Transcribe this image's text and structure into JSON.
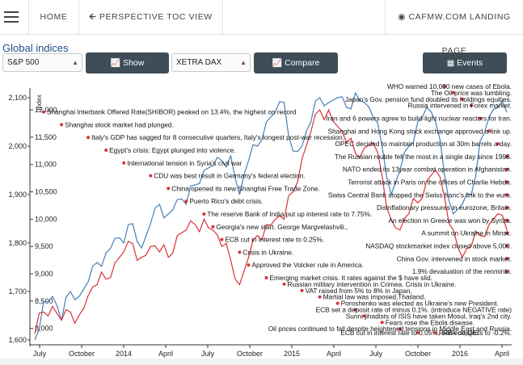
{
  "nav": {
    "home_label": "HOME",
    "toc_label": "PERSPECTIVE TOC VIEW",
    "toc_icon": "arrow-left-icon",
    "landing_label": "CAFMW.COM LANDING PAGE",
    "landing_icon": "globe-icon"
  },
  "page_title": "Global indices",
  "controls": {
    "index1_selected": "S&P 500",
    "show_label": "Show",
    "index2_selected": "XETRA DAX",
    "compare_label": "Compare",
    "events_label": "Events"
  },
  "colors": {
    "series1": "#4a7fb5",
    "series2": "#d9333a",
    "accent": "#1c4d86",
    "button": "#3e4d57"
  },
  "chart_data": {
    "type": "line",
    "title": "",
    "xlabel": "",
    "ylabel": "Index",
    "x_ticks": [
      "July",
      "October",
      "2014",
      "April",
      "July",
      "October",
      "2015",
      "April",
      "July",
      "October",
      "2016",
      "April"
    ],
    "left_axis": {
      "ylim": [
        1590,
        2120
      ],
      "ticks": [
        1600,
        1700,
        1800,
        1900,
        2000,
        2100
      ]
    },
    "right_axis": {
      "ylim": [
        7700,
        12400
      ],
      "ticks": [
        8000,
        8500,
        9000,
        9500,
        10000,
        10500,
        11000,
        11500,
        12000
      ]
    },
    "series": [
      {
        "name": "S&P 500",
        "axis": "left",
        "values": [
          1600,
          1680,
          1690,
          1640,
          1700,
          1690,
          1720,
          1760,
          1780,
          1810,
          1800,
          1840,
          1790,
          1840,
          1880,
          1860,
          1890,
          1880,
          1920,
          1950,
          1960,
          1970,
          1980,
          1900,
          1970,
          2000,
          2050,
          2070,
          2090,
          1990,
          2000,
          2050,
          2100,
          2090,
          2100,
          2080,
          2110,
          2090,
          2060,
          2000,
          1900,
          1950,
          2000,
          2050,
          2080,
          2050,
          1940,
          1860,
          1880,
          1900,
          2010,
          2060,
          2080,
          2070
        ]
      },
      {
        "name": "XETRA DAX",
        "axis": "right",
        "values": [
          7900,
          8300,
          8400,
          8150,
          8300,
          8250,
          8600,
          8800,
          8900,
          9200,
          9400,
          9550,
          9300,
          9500,
          9400,
          9300,
          9700,
          9800,
          9900,
          10000,
          9800,
          9500,
          9250,
          8800,
          9300,
          9700,
          9900,
          10000,
          10000,
          10500,
          11100,
          11600,
          12000,
          12000,
          11700,
          11400,
          11200,
          11300,
          11400,
          10800,
          10000,
          9800,
          10100,
          10300,
          10700,
          10900,
          10400,
          9800,
          9300,
          9500,
          9700,
          9900,
          10100,
          9800
        ]
      }
    ],
    "events": [
      {
        "text": "WHO warned 10,000 new cases of Ebola.",
        "dot_x": 46
      },
      {
        "text": "The Oil price was tumbling.",
        "dot_x": 47
      },
      {
        "text": "Japan's Gov. pension fund doubled its holdings equities.",
        "dot_x": 48
      },
      {
        "text": "Russia intervened in Forex market.",
        "dot_x": 49
      },
      {
        "text": "Shanghai Interbank Offered Rate(SHIBOR) peaked on 13.4%, the highest on record",
        "dot_x": 1
      },
      {
        "text": "Iran and 6 powers agree to build-light nuclear reactors for Iran.",
        "dot_x": 50
      },
      {
        "text": "Shanghai stock market had plunged.",
        "dot_x": 3
      },
      {
        "text": "Shanghai and Hong Kong stock exchange approved a link up.",
        "dot_x": 51
      },
      {
        "text": "Italy's GDP has sagged for 8 consecutive quarters, Italy's longest post-war recession.",
        "dot_x": 6
      },
      {
        "text": "OPEC decided to maintain production at 30m barrels a day.",
        "dot_x": 52
      },
      {
        "text": "Egypt's crisis: Egypt plunged into violence.",
        "dot_x": 8
      },
      {
        "text": "The Russian rouble fell the most in a single day since 1998.",
        "dot_x": 53
      },
      {
        "text": "International tension in Syria's civil war",
        "dot_x": 10
      },
      {
        "text": "NATO ended its 13year combat operation in Afghanistan.",
        "dot_x": 54
      },
      {
        "text": "CDU was best result in Germany's federal election.",
        "dot_x": 13
      },
      {
        "text": "Terrorist attack in Paris on the offices of Charlie Hebdo.",
        "dot_x": 55
      },
      {
        "text": "China opened its new Shanghai Free Trade Zone.",
        "dot_x": 15
      },
      {
        "text": "Swiss Central Bank stopped the Swiss franc's link to the euro.",
        "dot_x": 56
      },
      {
        "text": "Puerto Rico's debt crisis.",
        "dot_x": 17
      },
      {
        "text": "Disinflationary pressures in eurozone, Britain.",
        "dot_x": 57
      },
      {
        "text": "The reserve Bank of India put up interest rate to 7.75%.",
        "dot_x": 19
      },
      {
        "text": "An election in Greece was won by Syriza.",
        "dot_x": 58
      },
      {
        "text": "Georgia's new start. George Margvelashvili.,",
        "dot_x": 20
      },
      {
        "text": "A summit on Ukraine in Minsk.",
        "dot_x": 60
      },
      {
        "text": "ECB cut in interest rate to 0.25%.",
        "dot_x": 21
      },
      {
        "text": "NASDAQ stockmarket index closed above 5,000.",
        "dot_x": 62
      },
      {
        "text": "Crisis in Ukraine.",
        "dot_x": 23
      },
      {
        "text": "China Gov. intervened in stock market.",
        "dot_x": 70
      },
      {
        "text": "Approved the Volcker rule in America.",
        "dot_x": 24
      },
      {
        "text": "1.9% devaluation of the renminbi.",
        "dot_x": 72
      },
      {
        "text": "Emerging market crisis. It rates against the $ have slid.",
        "dot_x": 26
      },
      {
        "text": "Russian military intervention in Crimea. Crisis in Ukraine.",
        "dot_x": 28
      },
      {
        "text": "VAT raised from 5% to 8% in Japan.",
        "dot_x": 30
      },
      {
        "text": "Martial law was imposed,Thailand.",
        "dot_x": 32
      },
      {
        "text": "Poroshenko was elected as Ukraine's new President.",
        "dot_x": 34
      },
      {
        "text": "ECB set a deposit rate of minus 0.1%. (introduce NEGATIVE rate)",
        "dot_x": 36
      },
      {
        "text": "Sunni jihadists of ISIS have taken Mosul, Iraq's 2nd city.",
        "dot_x": 37
      },
      {
        "text": "Fears rose the Ebola disease.",
        "dot_x": 39
      },
      {
        "text": "Oil prices continued to fall despite heightened tensions in Middle East and Russia.",
        "dot_x": 41
      },
      {
        "text": "ECB cut in interest rate to 0.05%, bank deposits to -0.2%.",
        "dot_x": 43
      },
      {
        "text": "FRB end QE.",
        "dot_x": 45
      }
    ]
  }
}
